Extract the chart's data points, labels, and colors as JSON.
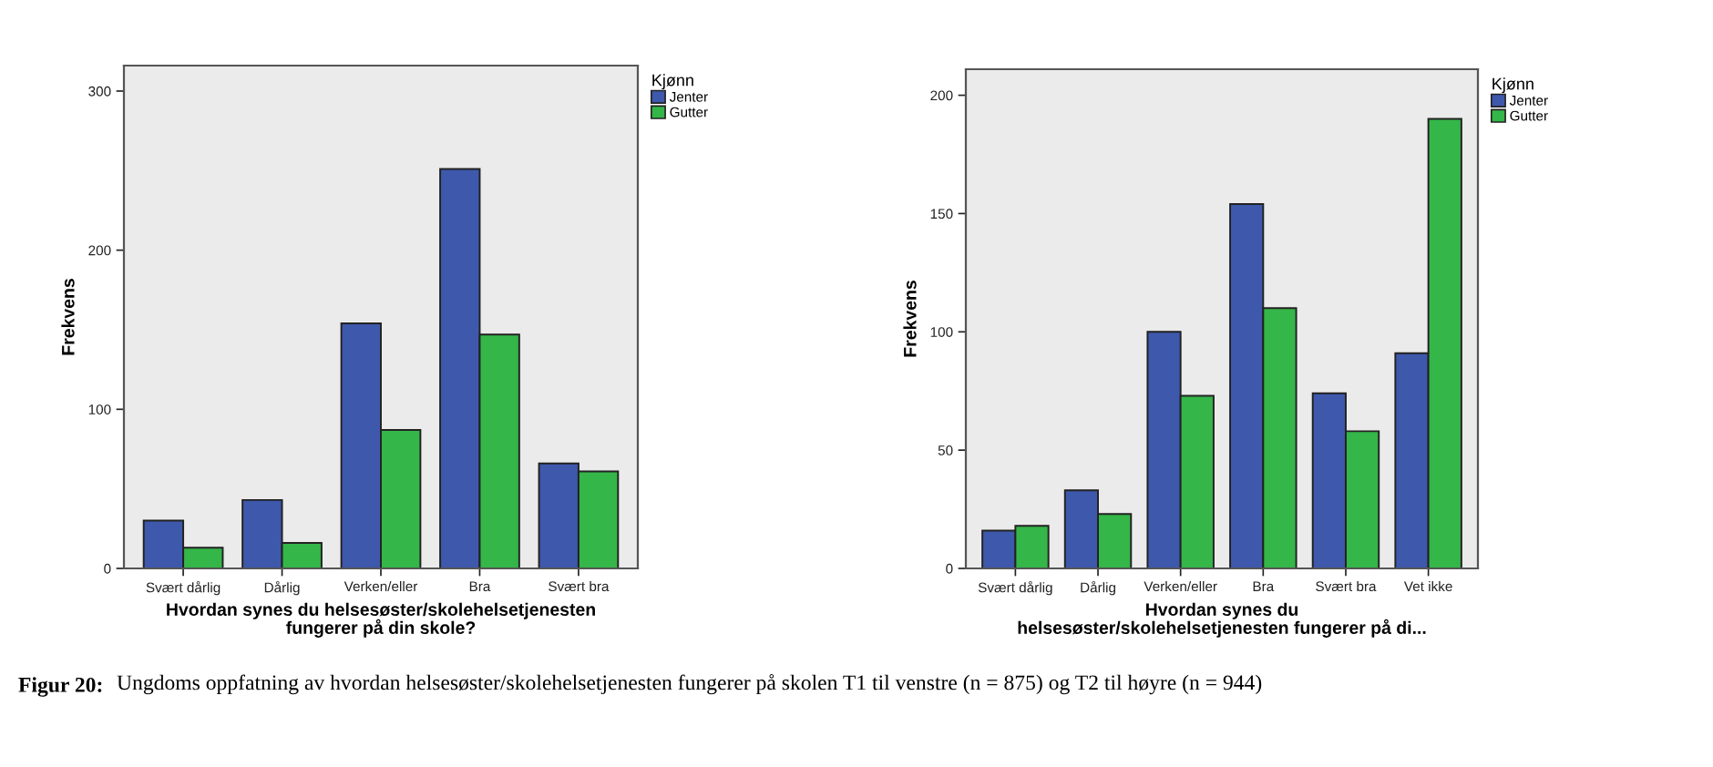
{
  "chart_data": [
    {
      "type": "bar",
      "xlabel": "Hvordan synes du helsesøster/skolehelsetjenesten\nfungerer på din skole?",
      "ylabel": "Frekvens",
      "legend_title": "Kjønn",
      "legend": "right",
      "categories": [
        "Svært dårlig",
        "Dårlig",
        "Verken/eller",
        "Bra",
        "Svært bra"
      ],
      "series": [
        {
          "name": "Jenter",
          "color": "#3e58ac",
          "values": [
            30,
            43,
            154,
            251,
            66
          ]
        },
        {
          "name": "Gutter",
          "color": "#34b648",
          "values": [
            13,
            16,
            87,
            147,
            61
          ]
        }
      ],
      "ylim": [
        0,
        316
      ],
      "yticks": [
        0,
        100,
        200,
        300
      ],
      "grid": false,
      "annotations": [
        "Figur 20:",
        "Ungdoms oppfatning av hvordan helsesøster/skolehelsetjenesten fungerer på skolen T1 til venstre (n = 875) og T2 til høyre (n = 944)"
      ]
    },
    {
      "type": "bar",
      "xlabel": "Hvordan synes du\nhelsesøster/skolehelsetjenesten fungerer på di...",
      "ylabel": "Frekvens",
      "legend_title": "Kjønn",
      "legend": "right",
      "categories": [
        "Svært dårlig",
        "Dårlig",
        "Verken/eller",
        "Bra",
        "Svært bra",
        "Vet ikke"
      ],
      "series": [
        {
          "name": "Jenter",
          "color": "#3e58ac",
          "values": [
            16,
            33,
            100,
            154,
            74,
            91
          ]
        },
        {
          "name": "Gutter",
          "color": "#34b648",
          "values": [
            18,
            23,
            73,
            110,
            58,
            190
          ]
        }
      ],
      "ylim": [
        0,
        211
      ],
      "yticks": [
        0,
        50,
        100,
        150,
        200
      ],
      "grid": false
    }
  ]
}
